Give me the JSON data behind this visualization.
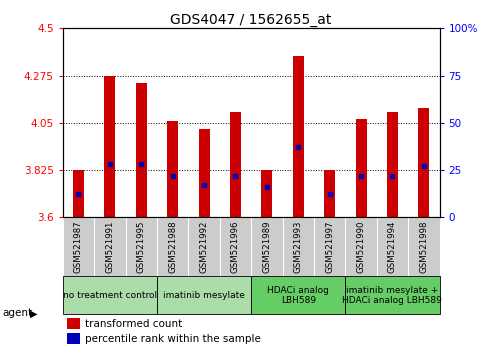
{
  "title": "GDS4047 / 1562655_at",
  "samples": [
    "GSM521987",
    "GSM521991",
    "GSM521995",
    "GSM521988",
    "GSM521992",
    "GSM521996",
    "GSM521989",
    "GSM521993",
    "GSM521997",
    "GSM521990",
    "GSM521994",
    "GSM521998"
  ],
  "transformed_count": [
    3.825,
    4.275,
    4.24,
    4.06,
    4.02,
    4.1,
    3.825,
    4.37,
    3.825,
    4.07,
    4.1,
    4.12
  ],
  "percentile_rank": [
    12,
    28,
    28,
    22,
    17,
    22,
    16,
    37,
    12,
    22,
    22,
    27
  ],
  "groups": [
    {
      "label": "no treatment control",
      "indices": [
        0,
        1,
        2
      ],
      "color": "#aaddaa"
    },
    {
      "label": "imatinib mesylate",
      "indices": [
        3,
        4,
        5
      ],
      "color": "#aaddaa"
    },
    {
      "label": "HDACi analog\nLBH589",
      "indices": [
        6,
        7,
        8
      ],
      "color": "#66cc66"
    },
    {
      "label": "imatinib mesylate +\nHDACi analog LBH589",
      "indices": [
        9,
        10,
        11
      ],
      "color": "#66cc66"
    }
  ],
  "ymin": 3.6,
  "ymax": 4.5,
  "yticks": [
    3.6,
    3.825,
    4.05,
    4.275,
    4.5
  ],
  "ytick_labels": [
    "3.6",
    "3.825",
    "4.05",
    "4.275",
    "4.5"
  ],
  "right_yticks": [
    0,
    25,
    50,
    75,
    100
  ],
  "right_ytick_labels": [
    "0",
    "25",
    "50",
    "75",
    "100%"
  ],
  "bar_color": "#cc0000",
  "percentile_color": "#0000bb",
  "bar_width": 0.35,
  "grid_color": "#000000",
  "bg_color_plot": "#ffffff",
  "sample_bg_color": "#cccccc",
  "legend_items": [
    {
      "color": "#cc0000",
      "label": "transformed count"
    },
    {
      "color": "#0000bb",
      "label": "percentile rank within the sample"
    }
  ]
}
